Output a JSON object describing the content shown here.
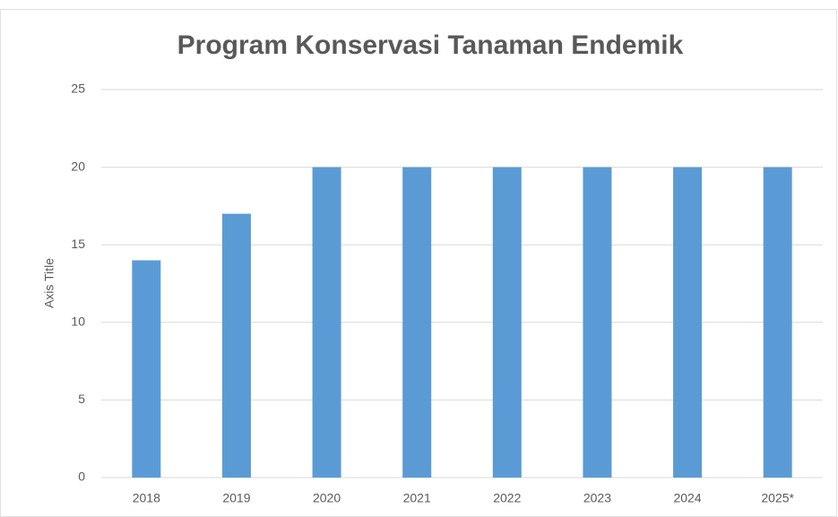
{
  "chart_data": {
    "type": "bar",
    "title": "Program Konservasi Tanaman Endemik",
    "y_label": "Axis Title",
    "categories": [
      "2018",
      "2019",
      "2020",
      "2021",
      "2022",
      "2023",
      "2024",
      "2025*"
    ],
    "values": [
      14,
      17,
      20,
      20,
      20,
      20,
      20,
      20
    ],
    "color": "#5b9bd5",
    "ylim": [
      0,
      25
    ],
    "yticks": [
      0,
      5,
      10,
      15,
      20,
      25
    ],
    "grid": true
  }
}
